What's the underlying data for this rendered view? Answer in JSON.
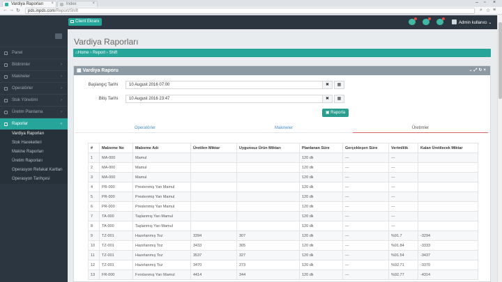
{
  "browser": {
    "tabs": [
      {
        "title": "Vardiya Raporları"
      },
      {
        "title": "Index"
      }
    ],
    "url_host": "pds.inpds.com",
    "url_path": "/Report/Shift"
  },
  "topbar": {
    "client_button": "Client Ekranı",
    "user": "Admin kullanıcı"
  },
  "sidebar": {
    "items": [
      {
        "label": "Panel",
        "icon": "home-icon"
      },
      {
        "label": "Bildirimler",
        "icon": "bell-icon"
      },
      {
        "label": "Makineler",
        "icon": "machine-icon"
      },
      {
        "label": "Operatörler",
        "icon": "user-icon"
      },
      {
        "label": "Stok Yönetimi",
        "icon": "box-icon"
      },
      {
        "label": "Üretim Planlama",
        "icon": "calendar-icon"
      },
      {
        "label": "Raporlar",
        "icon": "chart-icon"
      }
    ],
    "submenu": [
      "Vardiya Raporları",
      "Stok Hareketleri",
      "Makine Raporları",
      "Üretim Raporları",
      "Operasyon Refakat Kartları",
      "Operasyon Tarihçesi"
    ]
  },
  "page": {
    "title": "Vardiya Raporları",
    "breadcrumb": [
      "Home",
      "Report",
      "Shift"
    ]
  },
  "panel": {
    "title": "Vardiya Raporu",
    "start_label": "Başlangıç Tarihi",
    "start_value": "10 August 2016 07:00",
    "end_label": "Bitiş Tarihi",
    "end_value": "10 August 2016 23:47",
    "report_button": "Raporla",
    "tabs": [
      "Operatörler",
      "Makineler",
      "Üretimler"
    ]
  },
  "table": {
    "headers": [
      "#",
      "Malzeme No",
      "Malzeme Adı",
      "Üretilen Miktar",
      "Uygunsuz Ürün Miktarı",
      "Planlanan Süre",
      "Gerçekleşen Süre",
      "Verimlilik",
      "Kalan Üretilecek Miktar"
    ],
    "rows": [
      [
        "1",
        "MA-000",
        "Mamul",
        "",
        "",
        "120 dk",
        "---",
        "---",
        ""
      ],
      [
        "2",
        "MA-000",
        "Mamul",
        "",
        "",
        "120 dk",
        "---",
        "---",
        ""
      ],
      [
        "3",
        "MA-000",
        "Mamul",
        "",
        "",
        "120 dk",
        "---",
        "---",
        ""
      ],
      [
        "4",
        "PR-000",
        "Preslenmiş Yarı Mamul",
        "",
        "",
        "120 dk",
        "---",
        "---",
        ""
      ],
      [
        "5",
        "PR-000",
        "Preslenmiş Yarı Mamul",
        "",
        "",
        "120 dk",
        "---",
        "---",
        ""
      ],
      [
        "6",
        "PR-000",
        "Preslenmiş Yarı Mamul",
        "",
        "",
        "120 dk",
        "---",
        "---",
        ""
      ],
      [
        "7",
        "TA-000",
        "Taşlanmış Yarı Mamul",
        "",
        "",
        "120 dk",
        "---",
        "---",
        ""
      ],
      [
        "8",
        "TA-000",
        "Taşlanmış Yarı Mamul",
        "",
        "",
        "120 dk",
        "---",
        "---",
        ""
      ],
      [
        "9",
        "TZ-001",
        "Hazırlanmış Toz",
        "3394",
        "307",
        "120 dk",
        "---",
        "%91.7",
        "-3294"
      ],
      [
        "10",
        "TZ-001",
        "Hazırlanmış Toz",
        "3433",
        "305",
        "120 dk",
        "---",
        "%91.84",
        "-3333"
      ],
      [
        "11",
        "TZ-001",
        "Hazırlanmış Toz",
        "3537",
        "327",
        "120 dk",
        "---",
        "%91.54",
        "-3437"
      ],
      [
        "12",
        "TZ-001",
        "Hazırlanmış Toz",
        "3470",
        "273",
        "120 dk",
        "---",
        "%92.71",
        "-3370"
      ],
      [
        "13",
        "FR-000",
        "Fırınlanmış Yarı Mamul",
        "4414",
        "344",
        "120 dk",
        "---",
        "%92.77",
        "-4314"
      ]
    ]
  }
}
